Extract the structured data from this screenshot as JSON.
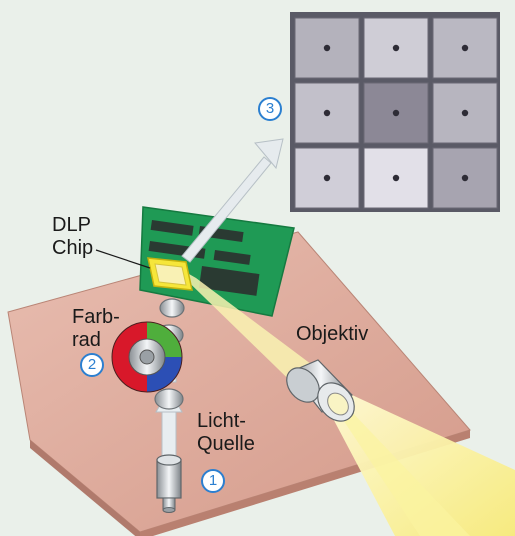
{
  "labels": {
    "dlp_chip_line1": "DLP",
    "dlp_chip_line2": "Chip",
    "farbrad_line1": "Farb-",
    "farbrad_line2": "rad",
    "objektiv": "Objektiv",
    "lichtquelle_line1": "Licht-",
    "lichtquelle_line2": "Quelle"
  },
  "markers": {
    "one": "1",
    "two": "2",
    "three": "3"
  },
  "colors": {
    "marker_blue": "#2b7fd0",
    "board_green": "#1f9a55",
    "base_plate": "#d8a79a",
    "beam_yellow": "#fbf3a0",
    "wheel_red": "#d8182a",
    "wheel_green": "#4fae3c",
    "wheel_blue": "#2c4fb5"
  }
}
